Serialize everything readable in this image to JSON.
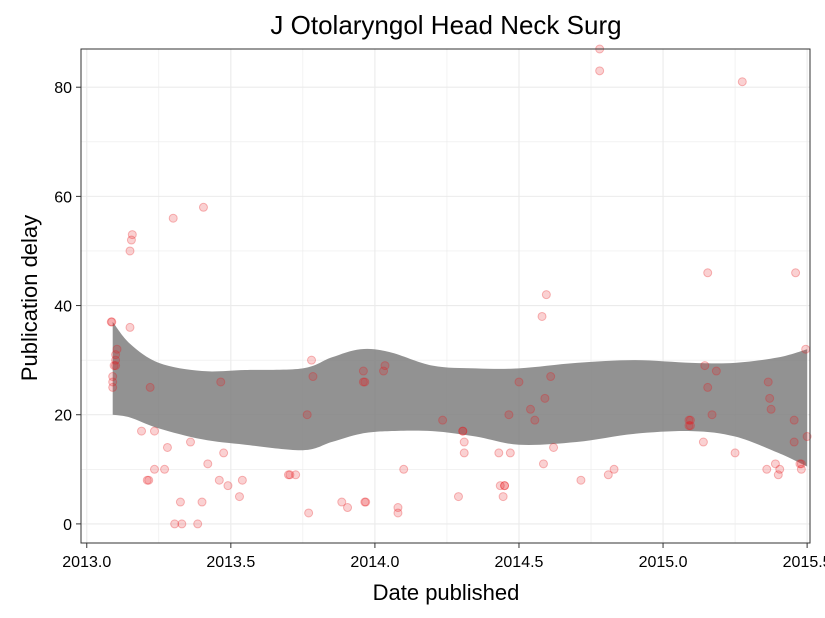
{
  "chart_data": {
    "type": "scatter",
    "title": "J Otolaryngol Head Neck Surg",
    "xlabel": "Date published",
    "ylabel": "Publication delay",
    "xlim": [
      2012.98,
      2015.51
    ],
    "ylim": [
      -3.5,
      87
    ],
    "xticks": [
      2013.0,
      2013.5,
      2014.0,
      2014.5,
      2015.0,
      2015.5
    ],
    "xtick_labels": [
      "2013.0",
      "2013.5",
      "2014.0",
      "2014.5",
      "2015.0",
      "2015.5"
    ],
    "yticks": [
      0,
      20,
      40,
      60,
      80
    ],
    "ytick_labels": [
      "0",
      "20",
      "40",
      "60",
      "80"
    ],
    "grid": true,
    "colors": {
      "points": "#e8191f",
      "band": "#7f7f7f",
      "grid": "#ebebeb",
      "panel_border": "#333333"
    },
    "band": {
      "x": [
        2013.09,
        2013.15,
        2013.25,
        2013.4,
        2013.55,
        2013.75,
        2013.85,
        2013.95,
        2014.05,
        2014.2,
        2014.35,
        2014.5,
        2014.7,
        2014.9,
        2015.1,
        2015.25,
        2015.4,
        2015.5
      ],
      "upper": [
        37,
        33,
        29.5,
        28,
        28.2,
        28.5,
        30.5,
        32,
        31.5,
        29,
        28.5,
        28.5,
        29.5,
        30,
        29.5,
        29.5,
        30.5,
        32
      ],
      "lower": [
        20,
        19.5,
        17.5,
        15.5,
        14.5,
        13.5,
        15,
        16.5,
        17,
        17,
        16,
        14.5,
        15,
        16.5,
        17,
        16,
        13,
        10.5
      ]
    },
    "points": [
      {
        "x": 2013.085,
        "y": 37
      },
      {
        "x": 2013.087,
        "y": 37
      },
      {
        "x": 2013.09,
        "y": 25
      },
      {
        "x": 2013.09,
        "y": 26
      },
      {
        "x": 2013.09,
        "y": 27
      },
      {
        "x": 2013.095,
        "y": 29
      },
      {
        "x": 2013.1,
        "y": 29
      },
      {
        "x": 2013.1,
        "y": 30
      },
      {
        "x": 2013.1,
        "y": 31
      },
      {
        "x": 2013.105,
        "y": 32
      },
      {
        "x": 2013.15,
        "y": 36
      },
      {
        "x": 2013.15,
        "y": 50
      },
      {
        "x": 2013.155,
        "y": 52
      },
      {
        "x": 2013.158,
        "y": 53
      },
      {
        "x": 2013.19,
        "y": 17
      },
      {
        "x": 2013.21,
        "y": 8
      },
      {
        "x": 2013.215,
        "y": 8
      },
      {
        "x": 2013.22,
        "y": 25
      },
      {
        "x": 2013.235,
        "y": 17
      },
      {
        "x": 2013.235,
        "y": 10
      },
      {
        "x": 2013.27,
        "y": 10
      },
      {
        "x": 2013.28,
        "y": 14
      },
      {
        "x": 2013.3,
        "y": 56
      },
      {
        "x": 2013.305,
        "y": 0
      },
      {
        "x": 2013.325,
        "y": 4
      },
      {
        "x": 2013.33,
        "y": 0
      },
      {
        "x": 2013.36,
        "y": 15
      },
      {
        "x": 2013.385,
        "y": 0
      },
      {
        "x": 2013.4,
        "y": 4
      },
      {
        "x": 2013.405,
        "y": 58
      },
      {
        "x": 2013.42,
        "y": 11
      },
      {
        "x": 2013.46,
        "y": 8
      },
      {
        "x": 2013.465,
        "y": 26
      },
      {
        "x": 2013.475,
        "y": 13
      },
      {
        "x": 2013.49,
        "y": 7
      },
      {
        "x": 2013.53,
        "y": 5
      },
      {
        "x": 2013.54,
        "y": 8
      },
      {
        "x": 2013.7,
        "y": 9
      },
      {
        "x": 2013.705,
        "y": 9
      },
      {
        "x": 2013.725,
        "y": 9
      },
      {
        "x": 2013.765,
        "y": 20
      },
      {
        "x": 2013.77,
        "y": 2
      },
      {
        "x": 2013.78,
        "y": 30
      },
      {
        "x": 2013.785,
        "y": 27
      },
      {
        "x": 2013.885,
        "y": 4
      },
      {
        "x": 2013.905,
        "y": 3
      },
      {
        "x": 2013.96,
        "y": 26
      },
      {
        "x": 2013.96,
        "y": 28
      },
      {
        "x": 2013.965,
        "y": 26
      },
      {
        "x": 2013.965,
        "y": 4
      },
      {
        "x": 2013.968,
        "y": 4
      },
      {
        "x": 2014.03,
        "y": 28
      },
      {
        "x": 2014.035,
        "y": 29
      },
      {
        "x": 2014.08,
        "y": 3
      },
      {
        "x": 2014.08,
        "y": 2
      },
      {
        "x": 2014.1,
        "y": 10
      },
      {
        "x": 2014.235,
        "y": 19
      },
      {
        "x": 2014.29,
        "y": 5
      },
      {
        "x": 2014.305,
        "y": 17
      },
      {
        "x": 2014.305,
        "y": 17
      },
      {
        "x": 2014.31,
        "y": 15
      },
      {
        "x": 2014.31,
        "y": 13
      },
      {
        "x": 2014.43,
        "y": 13
      },
      {
        "x": 2014.435,
        "y": 7
      },
      {
        "x": 2014.445,
        "y": 5
      },
      {
        "x": 2014.45,
        "y": 7
      },
      {
        "x": 2014.45,
        "y": 7
      },
      {
        "x": 2014.465,
        "y": 20
      },
      {
        "x": 2014.47,
        "y": 13
      },
      {
        "x": 2014.5,
        "y": 26
      },
      {
        "x": 2014.54,
        "y": 21
      },
      {
        "x": 2014.555,
        "y": 19
      },
      {
        "x": 2014.58,
        "y": 38
      },
      {
        "x": 2014.585,
        "y": 11
      },
      {
        "x": 2014.59,
        "y": 23
      },
      {
        "x": 2014.595,
        "y": 42
      },
      {
        "x": 2014.61,
        "y": 27
      },
      {
        "x": 2014.62,
        "y": 14
      },
      {
        "x": 2014.715,
        "y": 8
      },
      {
        "x": 2014.78,
        "y": 87
      },
      {
        "x": 2014.78,
        "y": 83
      },
      {
        "x": 2014.81,
        "y": 9
      },
      {
        "x": 2014.83,
        "y": 10
      },
      {
        "x": 2015.09,
        "y": 19
      },
      {
        "x": 2015.09,
        "y": 18
      },
      {
        "x": 2015.095,
        "y": 18
      },
      {
        "x": 2015.095,
        "y": 19
      },
      {
        "x": 2015.14,
        "y": 15
      },
      {
        "x": 2015.145,
        "y": 29
      },
      {
        "x": 2015.155,
        "y": 46
      },
      {
        "x": 2015.155,
        "y": 25
      },
      {
        "x": 2015.17,
        "y": 20
      },
      {
        "x": 2015.185,
        "y": 28
      },
      {
        "x": 2015.25,
        "y": 13
      },
      {
        "x": 2015.275,
        "y": 81
      },
      {
        "x": 2015.36,
        "y": 10
      },
      {
        "x": 2015.365,
        "y": 26
      },
      {
        "x": 2015.37,
        "y": 23
      },
      {
        "x": 2015.375,
        "y": 21
      },
      {
        "x": 2015.39,
        "y": 11
      },
      {
        "x": 2015.4,
        "y": 9
      },
      {
        "x": 2015.405,
        "y": 10
      },
      {
        "x": 2015.455,
        "y": 19
      },
      {
        "x": 2015.455,
        "y": 15
      },
      {
        "x": 2015.46,
        "y": 46
      },
      {
        "x": 2015.475,
        "y": 11
      },
      {
        "x": 2015.48,
        "y": 10
      },
      {
        "x": 2015.48,
        "y": 11
      },
      {
        "x": 2015.495,
        "y": 32
      },
      {
        "x": 2015.5,
        "y": 16
      }
    ]
  }
}
